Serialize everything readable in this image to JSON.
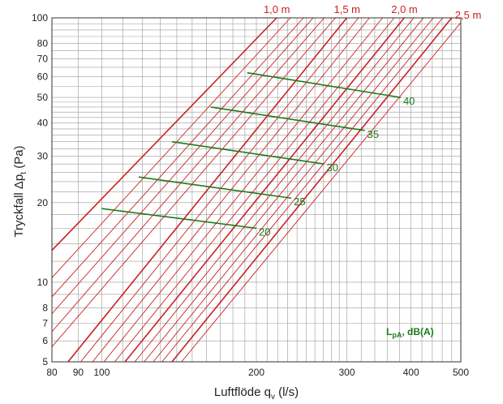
{
  "chart_data": {
    "type": "line",
    "xlabel": "Luftflöde q",
    "xlabel_sub": "v",
    "xlabel_unit": " (l/s)",
    "ylabel": "Tryckfall Δp",
    "ylabel_sub": "t",
    "ylabel_unit": " (Pa)",
    "x_scale": "log",
    "y_scale": "log",
    "xlim": [
      80,
      500
    ],
    "ylim": [
      5,
      100
    ],
    "grid": true,
    "x_tick_labels": [
      {
        "value": 80,
        "label": "80"
      },
      {
        "value": 90,
        "label": "90"
      },
      {
        "value": 100,
        "label": "100"
      },
      {
        "value": 200,
        "label": "200"
      },
      {
        "value": 300,
        "label": "300"
      },
      {
        "value": 400,
        "label": "400"
      },
      {
        "value": 500,
        "label": "500"
      }
    ],
    "x_minor_grid": [
      80,
      90,
      100,
      110,
      120,
      130,
      140,
      150,
      160,
      170,
      180,
      190,
      200,
      210,
      220,
      230,
      240,
      250,
      260,
      270,
      280,
      290,
      300,
      320,
      340,
      360,
      380,
      400,
      420,
      440,
      460,
      480,
      500
    ],
    "y_tick_labels": [
      {
        "value": 5,
        "label": "5"
      },
      {
        "value": 6,
        "label": "6"
      },
      {
        "value": 7,
        "label": "7"
      },
      {
        "value": 8,
        "label": "8"
      },
      {
        "value": 10,
        "label": "10"
      },
      {
        "value": 20,
        "label": "20"
      },
      {
        "value": 30,
        "label": "30"
      },
      {
        "value": 40,
        "label": "40"
      },
      {
        "value": 50,
        "label": "50"
      },
      {
        "value": 60,
        "label": "60"
      },
      {
        "value": 70,
        "label": "70"
      },
      {
        "value": 80,
        "label": "80"
      },
      {
        "value": 100,
        "label": "100"
      }
    ],
    "y_minor_grid": [
      5,
      6,
      7,
      8,
      9,
      10,
      12,
      14,
      16,
      18,
      20,
      22,
      24,
      26,
      28,
      30,
      32,
      34,
      36,
      38,
      40,
      42,
      44,
      46,
      48,
      50,
      55,
      60,
      65,
      70,
      75,
      80,
      85,
      90,
      95,
      100
    ],
    "red_color": "#cc1f1f",
    "green_color": "#1c7a1c",
    "red_lines": {
      "bold": [
        {
          "label": "1,0 m",
          "points": [
            [
              80,
              13.2
            ],
            [
              219,
              100
            ]
          ]
        },
        {
          "label": "1,5 m",
          "points": [
            [
              86,
              5
            ],
            [
              300,
              100
            ]
          ]
        },
        {
          "label": "2,0 m",
          "points": [
            [
              111,
              5
            ],
            [
              388,
              100
            ]
          ]
        },
        {
          "label": "2,5 m",
          "points": [
            [
              137,
              5
            ],
            [
              480,
              100
            ]
          ]
        }
      ],
      "thin": [
        {
          "points": [
            [
              80,
              10.4
            ],
            [
              233,
              100
            ]
          ]
        },
        {
          "points": [
            [
              80,
              8.8
            ],
            [
              247,
              100
            ]
          ]
        },
        {
          "points": [
            [
              80,
              7.6
            ],
            [
              258,
              100
            ]
          ]
        },
        {
          "points": [
            [
              80,
              6.5
            ],
            [
              271,
              100
            ]
          ]
        },
        {
          "points": [
            [
              80,
              5.7
            ],
            [
              285,
              100
            ]
          ]
        },
        {
          "points": [
            [
              91,
              5
            ],
            [
              316,
              100
            ]
          ]
        },
        {
          "points": [
            [
              96,
              5
            ],
            [
              332,
              100
            ]
          ]
        },
        {
          "points": [
            [
              101,
              5
            ],
            [
              352,
              100
            ]
          ]
        },
        {
          "points": [
            [
              106,
              5
            ],
            [
              371,
              100
            ]
          ]
        },
        {
          "points": [
            [
              116,
              5
            ],
            [
              405,
              100
            ]
          ]
        },
        {
          "points": [
            [
              121,
              5
            ],
            [
              423,
              100
            ]
          ]
        },
        {
          "points": [
            [
              126,
              5
            ],
            [
              442,
              100
            ]
          ]
        },
        {
          "points": [
            [
              131,
              5
            ],
            [
              461,
              100
            ]
          ]
        },
        {
          "points": [
            [
              143,
              5
            ],
            [
              500,
              96
            ]
          ]
        }
      ]
    },
    "green_lines": [
      {
        "label": "20",
        "points": [
          [
            100,
            19
          ],
          [
            200,
            16
          ]
        ]
      },
      {
        "label": "25",
        "points": [
          [
            118,
            25
          ],
          [
            234,
            20.8
          ]
        ]
      },
      {
        "label": "30",
        "points": [
          [
            137,
            34
          ],
          [
            271,
            28
          ]
        ]
      },
      {
        "label": "35",
        "points": [
          [
            163,
            46
          ],
          [
            325,
            37.5
          ]
        ]
      },
      {
        "label": "40",
        "points": [
          [
            192,
            62
          ],
          [
            382,
            50
          ]
        ]
      }
    ],
    "legend_note_main": "L",
    "legend_note_sub": "pA",
    "legend_note_rest": ", dB(A)"
  }
}
